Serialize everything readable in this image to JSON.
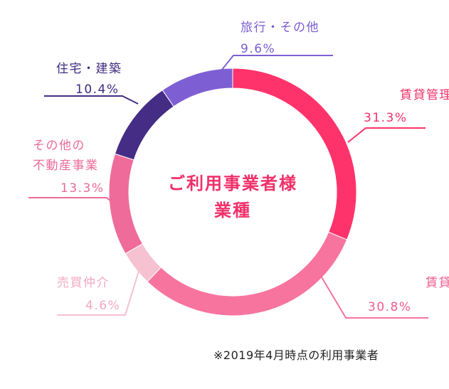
{
  "chart_data": {
    "type": "pie",
    "title_lines": [
      "ご利用事業者様",
      "業種"
    ],
    "unit": "%",
    "slices": [
      {
        "name": "賃貸管理",
        "name_lines": [
          "賃貸管理"
        ],
        "value": 31.3,
        "value_label": "31.3%",
        "color": "#ff336b",
        "label_color": "#f0306a"
      },
      {
        "name": "賃貸仲介",
        "name_lines": [
          "賃貸仲介"
        ],
        "value": 30.8,
        "value_label": "30.8%",
        "color": "#f7749e",
        "label_color": "#ee5c8c"
      },
      {
        "name": "売買仲介",
        "name_lines": [
          "売買仲介"
        ],
        "value": 4.6,
        "value_label": "4.6%",
        "color": "#f6c1d0",
        "label_color": "#f2a9c0"
      },
      {
        "name": "その他の不動産事業",
        "name_lines": [
          "その他の",
          "不動産事業"
        ],
        "value": 13.3,
        "value_label": "13.3%",
        "color": "#ef6b9a",
        "label_color": "#ec6a98"
      },
      {
        "name": "住宅・建築",
        "name_lines": [
          "住宅・建築"
        ],
        "value": 10.4,
        "value_label": "10.4%",
        "color": "#452d85",
        "label_color": "#3f2a80"
      },
      {
        "name": "旅行・その他",
        "name_lines": [
          "旅行・その他"
        ],
        "value": 9.6,
        "value_label": "9.6%",
        "color": "#7e5fd3",
        "label_color": "#7a5cd0"
      }
    ],
    "legend": "none"
  },
  "footnote": "※2019年4月時点の利用事業者"
}
